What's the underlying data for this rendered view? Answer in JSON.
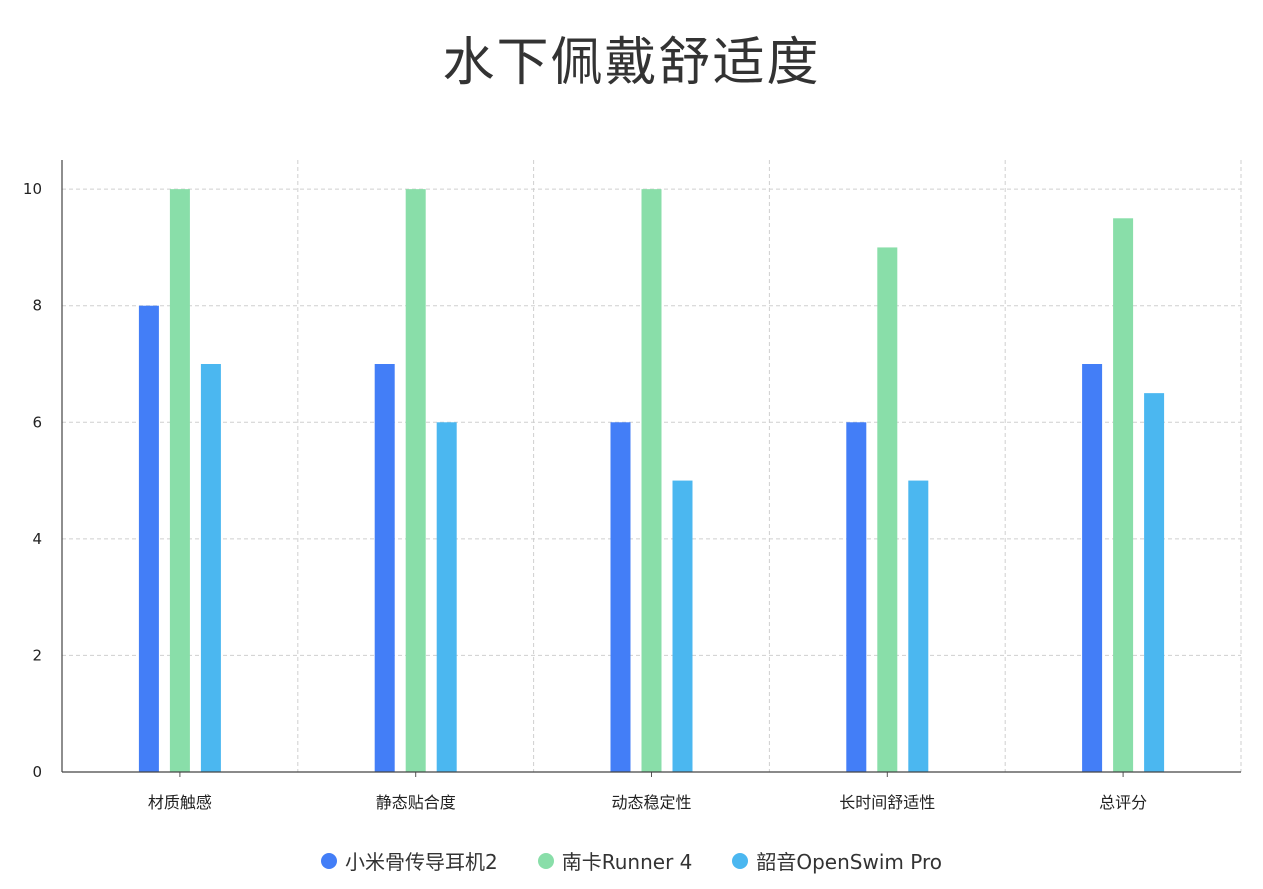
{
  "chart_data": {
    "type": "bar",
    "title": "水下佩戴舒适度",
    "categories": [
      "材质触感",
      "静态贴合度",
      "动态稳定性",
      "长时间舒适性",
      "总评分"
    ],
    "series": [
      {
        "name": "小米骨传导耳机2",
        "color": "#437ef7",
        "values": [
          8,
          7,
          6,
          6,
          7
        ]
      },
      {
        "name": "南卡Runner 4",
        "color": "#89dea9",
        "values": [
          10,
          10,
          10,
          9,
          9.5
        ]
      },
      {
        "name": "韶音OpenSwim Pro",
        "color": "#4bb7f0",
        "values": [
          7,
          6,
          5,
          5,
          6.5
        ]
      }
    ],
    "yticks": [
      "0",
      "2",
      "4",
      "6",
      "8",
      "10"
    ],
    "ylim": [
      0,
      10.5
    ],
    "xlabel": "",
    "ylabel": "",
    "grid": true,
    "legend_position": "bottom"
  }
}
